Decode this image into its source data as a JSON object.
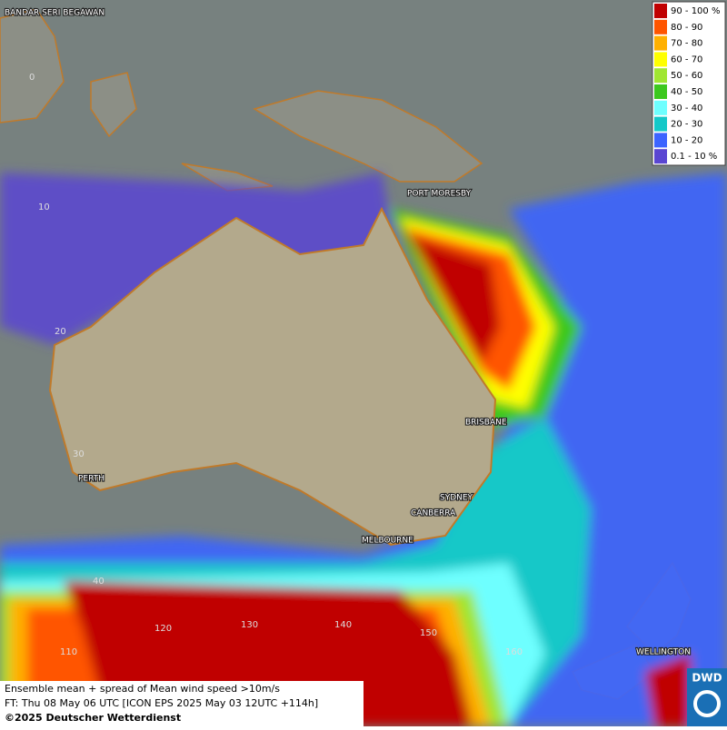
{
  "legend": [
    {
      "label": "90 - 100 %",
      "color": "#c00000"
    },
    {
      "label": "80 - 90",
      "color": "#ff5500"
    },
    {
      "label": "70 - 80",
      "color": "#ffb000"
    },
    {
      "label": "60 - 70",
      "color": "#ffff00"
    },
    {
      "label": "50 - 60",
      "color": "#a0e632"
    },
    {
      "label": "40 - 50",
      "color": "#3cc81e"
    },
    {
      "label": "30 - 40",
      "color": "#6effff"
    },
    {
      "label": "20 - 30",
      "color": "#14c8c8"
    },
    {
      "label": "10 - 20",
      "color": "#3c64ff"
    },
    {
      "label": "0.1 - 10 %",
      "color": "#5a46d2"
    }
  ],
  "cities": [
    "BANDAR SERI BEGAWAN",
    "PORT MORESBY",
    "BRISBANE",
    "PERTH",
    "SYDNEY",
    "CANBERRA",
    "MELBOURNE",
    "WELLINGTON"
  ],
  "grid_labels": [
    "0",
    "10",
    "20",
    "30",
    "40",
    "110",
    "120",
    "130",
    "140",
    "150",
    "160"
  ],
  "footer": {
    "description": "Ensemble mean + spread of Mean wind speed >10m/s",
    "forecast": "FT: Thu 08 May 06 UTC [ICON EPS 2025 May 03 12UTC +114h]",
    "copyright": "©2025 Deutscher Wetterdienst"
  },
  "logo": "DWD"
}
